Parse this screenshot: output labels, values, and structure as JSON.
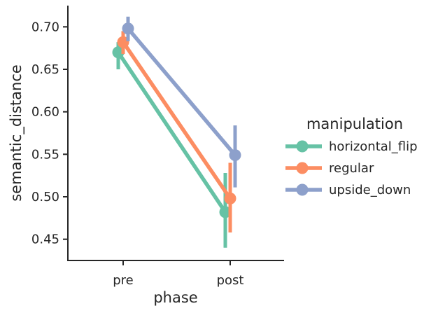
{
  "chart_data": {
    "type": "line",
    "xlabel": "phase",
    "ylabel": "semantic_distance",
    "categories": [
      "pre",
      "post"
    ],
    "ylim": [
      0.425,
      0.725
    ],
    "yticks": [
      0.45,
      0.5,
      0.55,
      0.6,
      0.65,
      0.7
    ],
    "ytick_labels": [
      "0.45",
      "0.50",
      "0.55",
      "0.60",
      "0.65",
      "0.70"
    ],
    "grid": false,
    "legend": {
      "title": "manipulation",
      "placement": "right"
    },
    "series": [
      {
        "name": "horizontal_flip",
        "color": "#66c2a5",
        "values": [
          0.67,
          0.482
        ],
        "ci_low": [
          0.65,
          0.44
        ],
        "ci_high": [
          0.682,
          0.528
        ]
      },
      {
        "name": "regular",
        "color": "#fc8d62",
        "values": [
          0.682,
          0.498
        ],
        "ci_low": [
          0.668,
          0.458
        ],
        "ci_high": [
          0.695,
          0.54
        ]
      },
      {
        "name": "upside_down",
        "color": "#8da0cb",
        "values": [
          0.698,
          0.549
        ],
        "ci_low": [
          0.683,
          0.511
        ],
        "ci_high": [
          0.712,
          0.584
        ]
      }
    ]
  }
}
